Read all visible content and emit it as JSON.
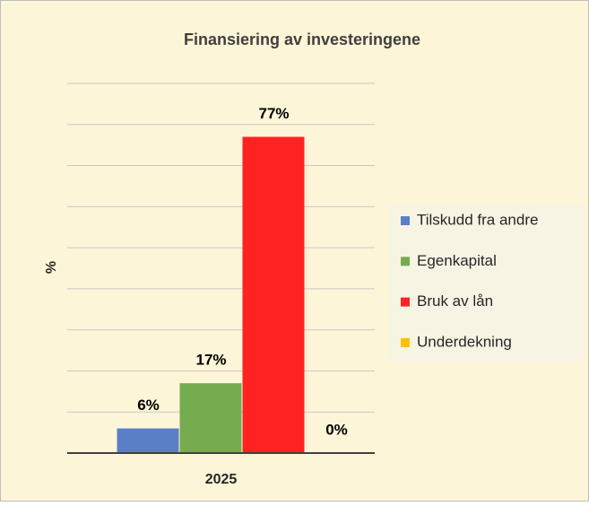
{
  "chart_data": {
    "type": "bar",
    "title": "Finansiering av investeringene",
    "ylabel": "%",
    "categories": [
      "2025"
    ],
    "series": [
      {
        "name": "Tilskudd fra andre",
        "color": "#5b7fc7",
        "values": [
          6
        ],
        "value_labels": [
          "6%"
        ]
      },
      {
        "name": "Egenkapital",
        "color": "#77ab4f",
        "values": [
          17
        ],
        "value_labels": [
          "17%"
        ]
      },
      {
        "name": "Bruk av lån",
        "color": "#ff2222",
        "values": [
          77
        ],
        "value_labels": [
          "77%"
        ]
      },
      {
        "name": "Underdekning",
        "color": "#ffc000",
        "values": [
          0
        ],
        "value_labels": [
          "0%"
        ]
      }
    ],
    "ylim": [
      0,
      90
    ],
    "yticks": [
      10,
      20,
      30,
      40,
      50,
      60,
      70,
      80,
      90
    ],
    "grid": true,
    "legend": "right"
  }
}
